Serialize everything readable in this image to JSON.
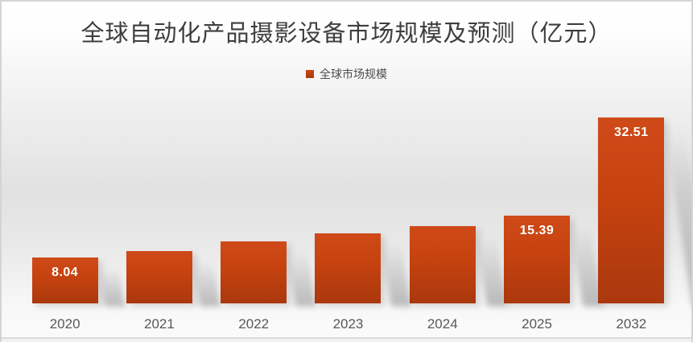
{
  "chart_data": {
    "type": "bar",
    "title": "全球自动化产品摄影设备市场规模及预测（亿元）",
    "legend": [
      {
        "label": "全球市场规模",
        "swatch_color": "#bf3f0f"
      }
    ],
    "legend_position": "top-center",
    "categories": [
      "2020",
      "2021",
      "2022",
      "2023",
      "2024",
      "2025",
      "2032"
    ],
    "series": [
      {
        "name": "全球市场规模",
        "values": [
          8.04,
          9.2,
          10.8,
          12.3,
          13.5,
          15.39,
          32.51
        ]
      }
    ],
    "data_labels": {
      "2020": "8.04",
      "2025": "15.39",
      "2032": "32.51"
    },
    "ylim": [
      0,
      32.51
    ],
    "grid": false,
    "axis_lines": false,
    "colors": {
      "bar_gradient_top": "#cf4a18",
      "bar_gradient_bottom": "#aa380e",
      "data_label_color": "#ffffff",
      "x_tick_color": "#595959",
      "title_color": "#3e3e3e",
      "legend_text_color": "#4d4d4d",
      "slide_border_color": "#d4d4d6"
    }
  }
}
